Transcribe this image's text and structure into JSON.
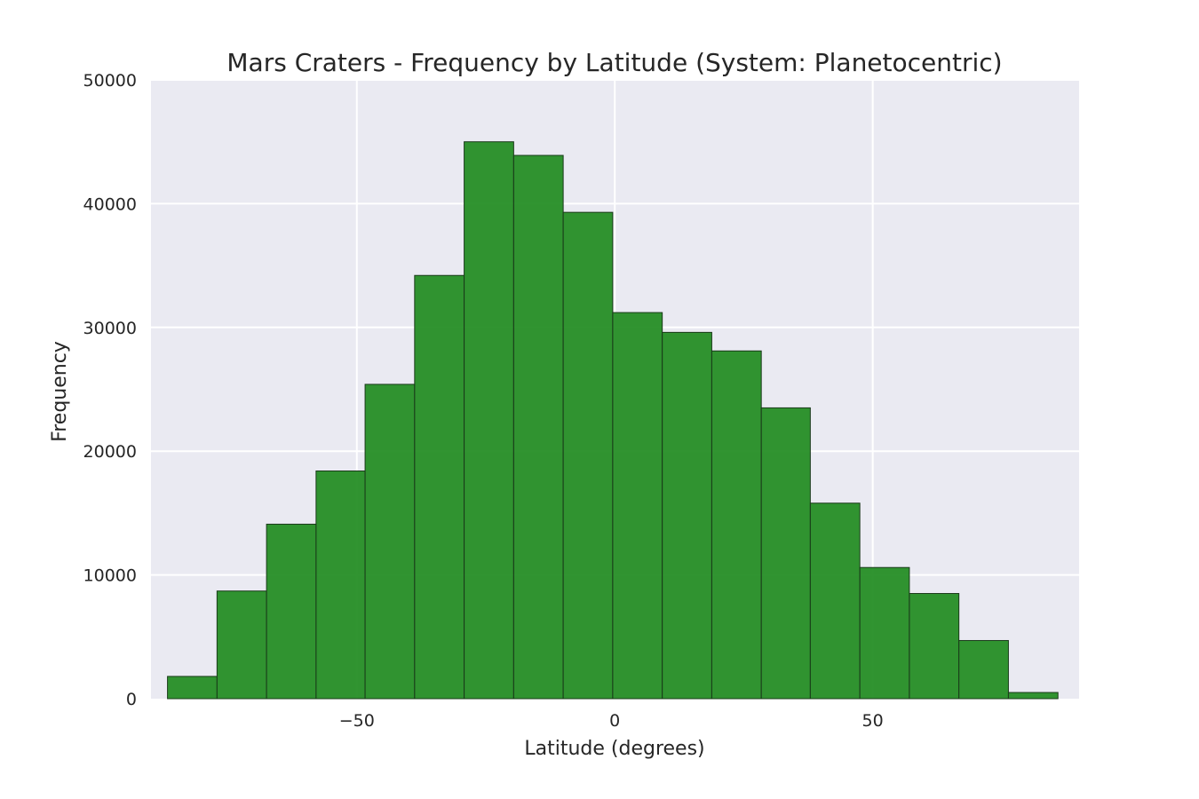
{
  "chart_data": {
    "type": "bar",
    "title": "Mars Craters - Frequency by Latitude (System: Planetocentric)",
    "xlabel": "Latitude (degrees)",
    "ylabel": "Frequency",
    "bin_edges": [
      -86.7,
      -77.1,
      -67.5,
      -57.9,
      -48.4,
      -38.8,
      -29.2,
      -19.6,
      -10.0,
      -0.4,
      9.2,
      18.8,
      28.4,
      37.9,
      47.5,
      57.1,
      66.7,
      76.3,
      85.9
    ],
    "values": [
      1800,
      8700,
      14100,
      18400,
      25400,
      34200,
      45000,
      43900,
      39300,
      31200,
      29600,
      28100,
      23500,
      15800,
      10600,
      8500,
      4700,
      500
    ],
    "xlim": [
      -89.9,
      90.0
    ],
    "ylim": [
      0,
      50000
    ],
    "xticks": [
      -50,
      0,
      50
    ],
    "xtick_labels": [
      "−50",
      "0",
      "50"
    ],
    "yticks": [
      0,
      10000,
      20000,
      30000,
      40000,
      50000
    ],
    "ytick_labels": [
      "0",
      "10000",
      "20000",
      "30000",
      "40000",
      "50000"
    ],
    "bar_color": "#1f8b1f",
    "grid": true
  }
}
